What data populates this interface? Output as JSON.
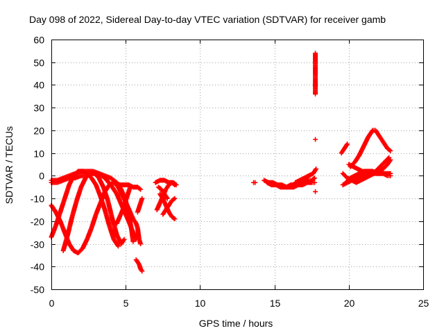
{
  "chart_data": {
    "type": "scatter",
    "title": "Day 098 of 2022, Sidereal Day-to-day VTEC variation (SDTVAR) for receiver gamb",
    "xlabel": "GPS time / hours",
    "ylabel": "SDTVAR / TECUs",
    "xlim": [
      0,
      25
    ],
    "ylim": [
      -50,
      60
    ],
    "xticks": [
      "0",
      "5",
      "10",
      "15",
      "20",
      "25"
    ],
    "yticks": [
      "-50",
      "-40",
      "-30",
      "-20",
      "-10",
      "0",
      "10",
      "20",
      "30",
      "40",
      "50",
      "60"
    ],
    "grid": true,
    "marker": "plus",
    "color": "#ff0000",
    "series": [
      {
        "points": [
          [
            0.0,
            -13
          ],
          [
            0.3,
            -16
          ],
          [
            0.6,
            -20
          ],
          [
            0.9,
            -25
          ],
          [
            1.2,
            -30
          ],
          [
            1.5,
            -33
          ],
          [
            1.8,
            -34
          ],
          [
            2.1,
            -32
          ],
          [
            2.4,
            -28
          ],
          [
            2.7,
            -23
          ],
          [
            3.0,
            -17
          ],
          [
            3.3,
            -12
          ],
          [
            3.6,
            -7
          ],
          [
            3.9,
            -4
          ],
          [
            4.2,
            -3
          ],
          [
            4.5,
            -5
          ],
          [
            4.8,
            -9
          ]
        ]
      },
      {
        "points": [
          [
            0.0,
            -27
          ],
          [
            0.3,
            -22
          ],
          [
            0.6,
            -16
          ],
          [
            0.9,
            -10
          ],
          [
            1.2,
            -4
          ],
          [
            1.5,
            0
          ],
          [
            1.8,
            2
          ],
          [
            2.1,
            2
          ],
          [
            2.4,
            1
          ],
          [
            2.7,
            -1
          ],
          [
            3.0,
            -4
          ],
          [
            3.3,
            -9
          ],
          [
            3.6,
            -15
          ],
          [
            3.9,
            -22
          ],
          [
            4.2,
            -28
          ],
          [
            4.5,
            -31
          ]
        ]
      },
      {
        "points": [
          [
            0.8,
            -33
          ],
          [
            1.1,
            -26
          ],
          [
            1.4,
            -18
          ],
          [
            1.7,
            -11
          ],
          [
            2.0,
            -5
          ],
          [
            2.3,
            -1
          ],
          [
            2.6,
            1
          ],
          [
            2.9,
            1
          ],
          [
            3.2,
            -1
          ],
          [
            3.5,
            -5
          ],
          [
            3.8,
            -11
          ],
          [
            4.1,
            -19
          ],
          [
            4.4,
            -26
          ],
          [
            4.7,
            -30
          ],
          [
            4.9,
            -28
          ]
        ]
      },
      {
        "points": [
          [
            0.0,
            -2
          ],
          [
            0.4,
            -2
          ],
          [
            0.8,
            -1
          ],
          [
            1.2,
            0
          ],
          [
            1.6,
            1
          ],
          [
            2.0,
            2
          ],
          [
            2.4,
            2
          ],
          [
            2.8,
            2
          ],
          [
            3.2,
            1
          ],
          [
            3.6,
            -1
          ],
          [
            4.0,
            -4
          ],
          [
            4.4,
            -8
          ],
          [
            4.8,
            -14
          ],
          [
            5.2,
            -20
          ],
          [
            5.5,
            -25
          ],
          [
            5.7,
            -28
          ]
        ]
      },
      {
        "points": [
          [
            0.0,
            -3
          ],
          [
            0.4,
            -3
          ],
          [
            0.8,
            -2
          ],
          [
            1.2,
            -1
          ],
          [
            1.6,
            -1
          ],
          [
            2.0,
            0
          ],
          [
            2.4,
            0
          ],
          [
            2.8,
            1
          ],
          [
            3.2,
            1
          ],
          [
            3.6,
            0
          ],
          [
            4.0,
            -1
          ],
          [
            4.4,
            -3
          ],
          [
            4.7,
            -6
          ],
          [
            5.0,
            -11
          ],
          [
            5.2,
            -17
          ],
          [
            5.4,
            -24
          ],
          [
            5.5,
            -29
          ]
        ]
      },
      {
        "points": [
          [
            4.5,
            -5
          ],
          [
            4.8,
            -9
          ],
          [
            5.1,
            -13
          ],
          [
            5.3,
            -16
          ],
          [
            5.5,
            -19
          ],
          [
            5.7,
            -21
          ],
          [
            5.8,
            -23
          ],
          [
            5.9,
            -28
          ],
          [
            6.0,
            -30
          ]
        ]
      },
      {
        "points": [
          [
            4.4,
            -21
          ],
          [
            4.6,
            -18
          ],
          [
            4.8,
            -15
          ],
          [
            5.0,
            -11
          ],
          [
            5.2,
            -7
          ],
          [
            5.3,
            -5
          ]
        ]
      },
      {
        "points": [
          [
            4.3,
            -3
          ],
          [
            4.6,
            -4
          ],
          [
            4.9,
            -4
          ],
          [
            5.2,
            -4
          ],
          [
            5.5,
            -5
          ],
          [
            5.8,
            -5
          ],
          [
            6.0,
            -6
          ]
        ]
      },
      {
        "points": [
          [
            5.7,
            -37
          ],
          [
            5.9,
            -39
          ],
          [
            6.0,
            -41
          ],
          [
            6.1,
            -42
          ]
        ]
      },
      {
        "points": [
          [
            5.8,
            -16
          ],
          [
            5.9,
            -14
          ],
          [
            6.0,
            -12
          ],
          [
            6.1,
            -10
          ]
        ]
      },
      {
        "points": [
          [
            7.0,
            -3
          ],
          [
            7.3,
            -2
          ],
          [
            7.6,
            -2
          ],
          [
            7.9,
            -3
          ],
          [
            8.2,
            -3
          ],
          [
            8.4,
            -4
          ]
        ]
      },
      {
        "points": [
          [
            7.1,
            -15
          ],
          [
            7.3,
            -12
          ],
          [
            7.5,
            -9
          ],
          [
            7.7,
            -6
          ],
          [
            7.9,
            -4
          ],
          [
            8.1,
            -3
          ],
          [
            8.3,
            -4
          ]
        ]
      },
      {
        "points": [
          [
            7.3,
            -8
          ],
          [
            7.5,
            -10
          ],
          [
            7.7,
            -13
          ],
          [
            7.9,
            -16
          ],
          [
            8.1,
            -18
          ],
          [
            8.3,
            -19
          ]
        ]
      },
      {
        "points": [
          [
            7.5,
            -17
          ],
          [
            7.7,
            -15
          ],
          [
            7.9,
            -13
          ],
          [
            8.1,
            -11
          ],
          [
            8.3,
            -10
          ]
        ]
      },
      {
        "points": [
          [
            7.2,
            -5
          ],
          [
            7.4,
            -6
          ],
          [
            7.6,
            -8
          ],
          [
            7.8,
            -10
          ]
        ]
      },
      {
        "points": [
          [
            13.6,
            -3
          ],
          [
            13.7,
            -3
          ]
        ]
      },
      {
        "points": [
          [
            14.3,
            -2
          ],
          [
            14.6,
            -3
          ],
          [
            14.9,
            -3
          ],
          [
            15.2,
            -4
          ],
          [
            15.5,
            -4
          ],
          [
            15.8,
            -5
          ],
          [
            16.1,
            -4
          ],
          [
            16.4,
            -4
          ],
          [
            16.7,
            -3
          ],
          [
            17.0,
            -3
          ],
          [
            17.3,
            -2
          ],
          [
            17.5,
            -2
          ],
          [
            17.7,
            -1
          ]
        ]
      },
      {
        "points": [
          [
            14.5,
            -3
          ],
          [
            14.8,
            -4
          ],
          [
            15.1,
            -4
          ],
          [
            15.4,
            -5
          ],
          [
            15.7,
            -5
          ],
          [
            16.0,
            -5
          ],
          [
            16.3,
            -5
          ],
          [
            16.6,
            -4
          ],
          [
            16.9,
            -4
          ],
          [
            17.2,
            -3
          ],
          [
            17.5,
            -3
          ],
          [
            17.7,
            -3
          ]
        ]
      },
      {
        "points": [
          [
            16.4,
            -3
          ],
          [
            16.7,
            -2
          ],
          [
            17.0,
            -1
          ],
          [
            17.3,
            0
          ],
          [
            17.6,
            1
          ],
          [
            17.8,
            3
          ]
        ]
      },
      {
        "points": [
          [
            17.75,
            54
          ],
          [
            17.75,
            53
          ],
          [
            17.75,
            36
          ],
          [
            17.75,
            16
          ],
          [
            17.75,
            -7
          ]
        ]
      },
      {
        "points": [
          [
            19.5,
            10
          ],
          [
            19.7,
            12
          ],
          [
            19.9,
            14
          ]
        ]
      },
      {
        "points": [
          [
            19.6,
            -4
          ],
          [
            19.9,
            -3
          ],
          [
            20.2,
            -2
          ],
          [
            20.5,
            -1
          ],
          [
            20.8,
            0
          ],
          [
            21.1,
            1
          ],
          [
            21.4,
            1
          ],
          [
            21.7,
            1
          ],
          [
            22.0,
            1
          ],
          [
            22.3,
            1
          ],
          [
            22.6,
            0
          ],
          [
            22.8,
            0
          ]
        ]
      },
      {
        "points": [
          [
            19.6,
            1
          ],
          [
            19.9,
            -1
          ],
          [
            20.2,
            -2
          ],
          [
            20.5,
            -3
          ],
          [
            20.8,
            -2
          ],
          [
            21.1,
            -1
          ],
          [
            21.4,
            0
          ],
          [
            21.7,
            1
          ],
          [
            22.0,
            2
          ],
          [
            22.3,
            3
          ],
          [
            22.6,
            5
          ],
          [
            22.8,
            7
          ]
        ]
      },
      {
        "points": [
          [
            19.8,
            -3
          ],
          [
            20.1,
            -1
          ],
          [
            20.4,
            0
          ],
          [
            20.7,
            1
          ],
          [
            21.0,
            2
          ],
          [
            21.3,
            2
          ],
          [
            21.6,
            2
          ],
          [
            21.9,
            1
          ],
          [
            22.2,
            1
          ],
          [
            22.5,
            1
          ],
          [
            22.8,
            1
          ]
        ]
      },
      {
        "points": [
          [
            20.0,
            5
          ],
          [
            20.3,
            4
          ],
          [
            20.6,
            3
          ],
          [
            20.9,
            2
          ],
          [
            21.2,
            1
          ],
          [
            21.5,
            1
          ],
          [
            21.8,
            2
          ],
          [
            22.1,
            4
          ],
          [
            22.4,
            6
          ],
          [
            22.7,
            8
          ]
        ]
      },
      {
        "points": [
          [
            20.1,
            4
          ],
          [
            20.4,
            6
          ],
          [
            20.7,
            9
          ],
          [
            21.0,
            13
          ],
          [
            21.3,
            17
          ],
          [
            21.6,
            20
          ],
          [
            21.8,
            20
          ],
          [
            22.0,
            18
          ],
          [
            22.2,
            16
          ],
          [
            22.4,
            14
          ],
          [
            22.6,
            12
          ],
          [
            22.8,
            11
          ]
        ]
      }
    ]
  }
}
